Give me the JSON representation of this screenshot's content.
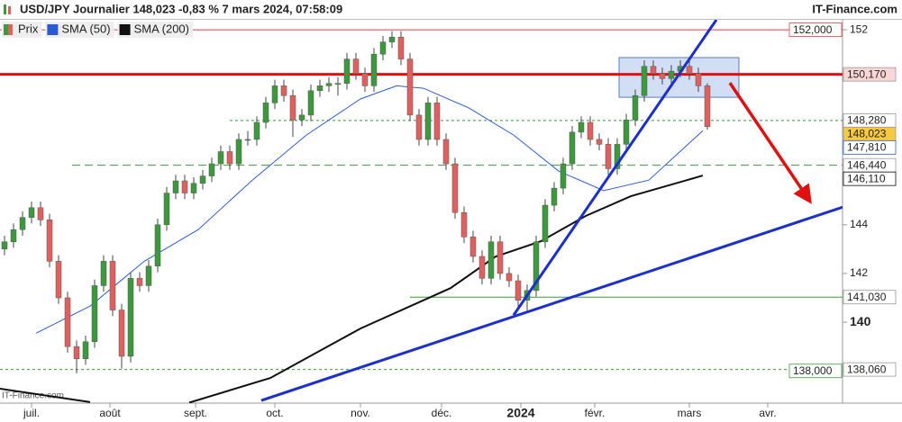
{
  "chart_data": {
    "type": "candlestick",
    "title": "USD/JPY Journalier 148,023 -0,83 % 7 mars 2024, 07:58:09",
    "source": "IT-Finance.com",
    "watermark": "IT-Finance.com",
    "xlim": [
      -0.5,
      93
    ],
    "xticks": [
      {
        "value": 3,
        "label": "juil."
      },
      {
        "value": 11.7,
        "label": "août"
      },
      {
        "value": 21.2,
        "label": "sept."
      },
      {
        "value": 30,
        "label": "oct."
      },
      {
        "value": 39.5,
        "label": "nov."
      },
      {
        "value": 48.5,
        "label": "déc."
      },
      {
        "value": 57.3,
        "label": "2024"
      },
      {
        "value": 65.5,
        "label": "févr."
      },
      {
        "value": 76,
        "label": "mars"
      },
      {
        "value": 84.7,
        "label": "avr."
      }
    ],
    "ylim": [
      136.68,
      152.41
    ],
    "yticks": [
      152,
      144,
      142,
      140
    ],
    "candles": {
      "name": "Prix",
      "up_color": "#3c9a3c",
      "down_color": "#e0605f",
      "ohlc": [
        [
          143.0,
          143.55,
          142.75,
          143.3
        ],
        [
          143.3,
          144.05,
          143.05,
          143.8
        ],
        [
          143.8,
          144.55,
          143.55,
          144.3
        ],
        [
          144.3,
          144.95,
          144.05,
          144.7
        ],
        [
          144.7,
          144.95,
          143.95,
          144.2
        ],
        [
          144.2,
          144.45,
          142.25,
          142.5
        ],
        [
          142.5,
          142.75,
          140.75,
          141
        ],
        [
          141,
          141.25,
          138.75,
          139
        ],
        [
          139,
          139.25,
          137.9,
          138.5
        ],
        [
          138.5,
          139.45,
          138.25,
          139.2
        ],
        [
          139.2,
          141.75,
          138.95,
          141.5
        ],
        [
          141.5,
          142.75,
          141.25,
          142.5
        ],
        [
          142.5,
          142.75,
          140.25,
          140.5
        ],
        [
          140.5,
          140.75,
          138.1,
          138.6
        ],
        [
          138.6,
          142.05,
          138.35,
          141.8
        ],
        [
          141.8,
          142.05,
          141.25,
          141.5
        ],
        [
          141.5,
          142.55,
          141.25,
          142.3
        ],
        [
          142.3,
          144.25,
          142.05,
          144
        ],
        [
          144,
          145.55,
          143.75,
          145.3
        ],
        [
          145.3,
          146.05,
          145.05,
          145.8
        ],
        [
          145.8,
          146.05,
          145.05,
          145.3
        ],
        [
          145.3,
          145.95,
          145.05,
          145.7
        ],
        [
          145.7,
          146.25,
          145.45,
          146
        ],
        [
          146,
          146.75,
          145.75,
          146.5
        ],
        [
          146.5,
          147.25,
          146.25,
          147
        ],
        [
          147,
          147.25,
          146.25,
          146.5
        ],
        [
          146.5,
          147.75,
          146.25,
          147.5
        ],
        [
          147.5,
          147.85,
          147.25,
          147.5
        ],
        [
          147.5,
          148.45,
          147.25,
          148.2
        ],
        [
          148.2,
          149.25,
          147.95,
          149
        ],
        [
          149,
          149.95,
          148.75,
          149.7
        ],
        [
          149.7,
          149.95,
          149.05,
          149.3
        ],
        [
          149.3,
          149.55,
          147.6,
          148.3
        ],
        [
          148.3,
          148.75,
          148.05,
          148.5
        ],
        [
          148.5,
          149.75,
          148.25,
          149.5
        ],
        [
          149.5,
          149.95,
          149.25,
          149.7
        ],
        [
          149.7,
          150.05,
          149.45,
          149.8
        ],
        [
          149.8,
          150.05,
          149.3,
          149.8
        ],
        [
          149.8,
          151.05,
          149.55,
          150.8
        ],
        [
          150.8,
          151.05,
          149.95,
          150.2
        ],
        [
          150.2,
          150.45,
          149.45,
          149.7
        ],
        [
          149.7,
          151.25,
          149.45,
          151
        ],
        [
          151,
          151.75,
          150.75,
          151.5
        ],
        [
          151.5,
          151.95,
          151.25,
          151.7
        ],
        [
          151.7,
          151.95,
          150.55,
          150.8
        ],
        [
          150.8,
          151.05,
          148.25,
          148.5
        ],
        [
          148.5,
          148.75,
          147.25,
          147.5
        ],
        [
          147.5,
          149.25,
          147.25,
          149
        ],
        [
          149,
          149.25,
          147.25,
          147.5
        ],
        [
          147.5,
          147.75,
          146.25,
          146.5
        ],
        [
          146.5,
          146.75,
          144.25,
          144.5
        ],
        [
          144.5,
          144.75,
          143.25,
          143.5
        ],
        [
          143.5,
          143.75,
          142.45,
          142.7
        ],
        [
          142.7,
          142.95,
          141.55,
          141.8
        ],
        [
          141.8,
          143.55,
          141.55,
          143.3
        ],
        [
          143.3,
          143.55,
          141.75,
          142
        ],
        [
          142,
          142.25,
          141.45,
          141.7
        ],
        [
          141.7,
          141.95,
          140.65,
          140.9
        ],
        [
          140.9,
          141.55,
          140.4,
          141.3
        ],
        [
          141.3,
          143.55,
          141.05,
          143.3
        ],
        [
          143.3,
          145.05,
          143.05,
          144.8
        ],
        [
          144.8,
          145.75,
          144.55,
          145.5
        ],
        [
          145.5,
          146.75,
          145.25,
          146.5
        ],
        [
          146.5,
          148.05,
          146.25,
          147.8
        ],
        [
          147.8,
          148.45,
          147.55,
          148.2
        ],
        [
          148.2,
          148.45,
          147.25,
          147.5
        ],
        [
          147.5,
          147.75,
          147.05,
          147.3
        ],
        [
          147.3,
          147.55,
          146.05,
          146.3
        ],
        [
          146.3,
          147.55,
          146.05,
          147.3
        ],
        [
          147.3,
          148.55,
          147.05,
          148.3
        ],
        [
          148.3,
          149.55,
          148.05,
          149.3
        ],
        [
          149.3,
          150.75,
          149.05,
          150.5
        ],
        [
          150.5,
          150.75,
          149.95,
          150.2
        ],
        [
          150.2,
          150.45,
          149.75,
          150
        ],
        [
          150,
          150.55,
          149.75,
          150.3
        ],
        [
          150.3,
          150.75,
          150.05,
          150.5
        ],
        [
          150.5,
          150.75,
          149.95,
          150.2
        ],
        [
          150.2,
          150.45,
          149.45,
          149.7
        ],
        [
          149.7,
          149.8,
          147.9,
          148.023
        ]
      ]
    },
    "series": [
      {
        "name": "SMA (50)",
        "color": "#2a5bd7",
        "x": [
          3.5,
          9.5,
          15.5,
          21.5,
          27.5,
          33.5,
          39.5,
          43.5,
          46.5,
          51.5,
          56.5,
          61.5,
          66.5,
          71.5,
          77.5
        ],
        "values": [
          139.55,
          140.66,
          142.5,
          143.8,
          145.83,
          147.68,
          149.16,
          149.7,
          149.6,
          148.8,
          147.68,
          146.2,
          145.4,
          145.83,
          147.86
        ]
      },
      {
        "name": "SMA (200)",
        "color": "#111111",
        "x": [
          -0.5,
          9.5,
          20.5,
          20.5,
          29.5,
          39.5,
          49.5,
          54.5,
          59.5,
          64.5,
          69.5,
          77.5
        ],
        "values": [
          137.27,
          136.72,
          null,
          136.7,
          137.71,
          139.74,
          141.4,
          142.69,
          143.32,
          144.36,
          145.17,
          146.02
        ]
      }
    ],
    "levels": [
      {
        "value": 152.0,
        "color": "#e04040",
        "width": 1,
        "dash": "none",
        "start": -0.5
      },
      {
        "value": 150.17,
        "color": "#e01010",
        "width": 3,
        "dash": "none",
        "start": -0.5
      },
      {
        "value": 148.28,
        "color": "#3c9a3c",
        "width": 1,
        "dash": "3,3",
        "start": 25
      },
      {
        "value": 146.44,
        "color": "#3c9a3c",
        "width": 1,
        "dash": "9,5",
        "start": 7.5
      },
      {
        "value": 141.03,
        "color": "#3c9a3c",
        "width": 1,
        "dash": "none",
        "start": 45
      },
      {
        "value": 138.06,
        "color": "#3c9a3c",
        "width": 1,
        "dash": "3,3",
        "start": -0.5
      }
    ],
    "price_labels": [
      {
        "value": 152.0,
        "label": "152,000",
        "color": "#e04040",
        "bg": "#ffffff",
        "position": "inside"
      },
      {
        "value": 150.17,
        "label": "150,170",
        "color": "#333333",
        "bg": "#fbd6d6",
        "position": "axis"
      },
      {
        "value": 148.28,
        "label": "148,280",
        "color": "#333333",
        "bg": "#ffffff",
        "position": "axis"
      },
      {
        "value": 148.023,
        "label": "148,023",
        "color": "#333333",
        "bg": "#f7c842",
        "position": "axis"
      },
      {
        "value": 147.81,
        "label": "147,810",
        "color": "#2a5bd7",
        "bg": "#ffffff",
        "position": "axis"
      },
      {
        "value": 146.44,
        "label": "146,440",
        "color": "#333333",
        "bg": "#ffffff",
        "position": "axis"
      },
      {
        "value": 146.11,
        "label": "146,110",
        "color": "#111111",
        "bg": "#ffffff",
        "position": "axis"
      },
      {
        "value": 141.03,
        "label": "141,030",
        "color": "#333333",
        "bg": "#ffffff",
        "position": "axis"
      },
      {
        "value": 138.0,
        "label": "138,000",
        "color": "#3c9a3c",
        "bg": "#ffffff",
        "position": "inside"
      },
      {
        "value": 138.06,
        "label": "138,060",
        "color": "#333333",
        "bg": "#ffffff",
        "position": "axis"
      }
    ],
    "trendlines": [
      {
        "color": "#1a2fd0",
        "points": [
          [
            56.5,
            140.29
          ],
          [
            79,
            152.41
          ]
        ]
      },
      {
        "color": "#1a2fd0",
        "points": [
          [
            28.5,
            136.79
          ],
          [
            93,
            144.72
          ]
        ]
      }
    ],
    "zone": {
      "x": [
        68.2,
        81.5
      ],
      "y": [
        149.23,
        150.86
      ],
      "color": "#9bb6e6"
    },
    "arrow": {
      "color": "#e01010",
      "points": [
        [
          80.5,
          149.82
        ],
        [
          89,
          145.17
        ]
      ]
    }
  }
}
